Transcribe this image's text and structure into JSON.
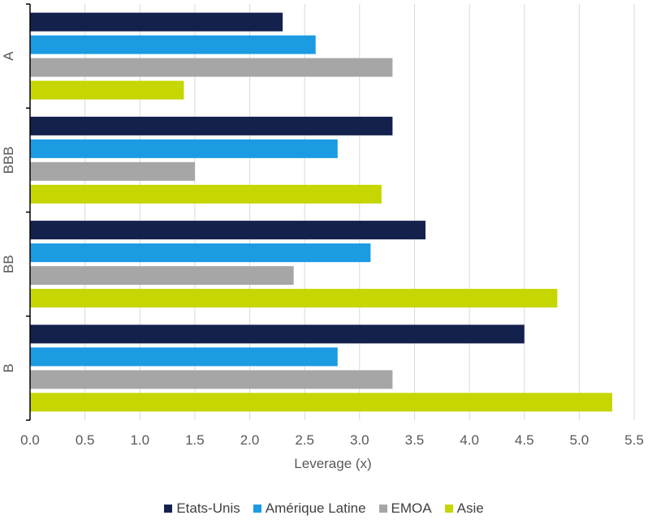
{
  "chart_data": {
    "type": "bar",
    "orientation": "horizontal",
    "categories": [
      "A",
      "BBB",
      "BB",
      "B"
    ],
    "series": [
      {
        "name": "Etats-Unis",
        "color": "#14214d",
        "values": [
          2.3,
          3.3,
          3.6,
          4.5
        ]
      },
      {
        "name": "Amérique Latine",
        "color": "#1b9be2",
        "values": [
          2.6,
          2.8,
          3.1,
          2.8
        ]
      },
      {
        "name": "EMOA",
        "color": "#a6a6a6",
        "values": [
          3.3,
          1.5,
          2.4,
          3.3
        ]
      },
      {
        "name": "Asie",
        "color": "#c5d600",
        "values": [
          1.4,
          3.2,
          4.8,
          5.3
        ]
      }
    ],
    "xlabel": "Leverage (x)",
    "ylabel": "",
    "xlim": [
      0,
      5.5
    ],
    "xticks": [
      "0.0",
      "0.5",
      "1.0",
      "1.5",
      "2.0",
      "2.5",
      "3.0",
      "3.5",
      "4.0",
      "4.5",
      "5.0",
      "5.5"
    ],
    "grid": "vertical",
    "legend_position": "bottom"
  }
}
